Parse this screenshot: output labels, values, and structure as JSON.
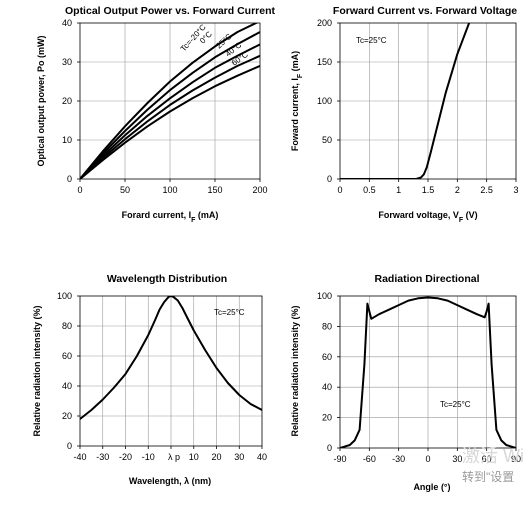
{
  "chart_data": [
    {
      "type": "line",
      "title": "Optical Output Power vs. Forward Current",
      "xlabel": "Forard current, I",
      "xlabel_sub": "F",
      "xlabel_unit": " (mA)",
      "ylabel": "Optical output power, Po (mW)",
      "xlim": [
        0,
        200
      ],
      "ylim": [
        0,
        40
      ],
      "xticks": [
        "0",
        "50",
        "100",
        "150",
        "200"
      ],
      "yticks": [
        "0",
        "10",
        "20",
        "30",
        "40"
      ],
      "grid": true,
      "series": [
        {
          "name": "Tc=-20°C",
          "x": [
            0,
            25,
            50,
            75,
            100,
            125,
            150,
            175,
            200
          ],
          "y": [
            0,
            7.0,
            13.5,
            19.5,
            25.0,
            29.8,
            34.0,
            37.7,
            40.5
          ]
        },
        {
          "name": "0°C",
          "x": [
            0,
            25,
            50,
            75,
            100,
            125,
            150,
            175,
            200
          ],
          "y": [
            0,
            6.4,
            12.3,
            17.8,
            22.8,
            27.2,
            31.2,
            34.6,
            37.7
          ]
        },
        {
          "name": "25°C",
          "x": [
            0,
            25,
            50,
            75,
            100,
            125,
            150,
            175,
            200
          ],
          "y": [
            0,
            5.8,
            11.2,
            16.2,
            20.7,
            24.8,
            28.5,
            31.6,
            34.5
          ]
        },
        {
          "name": "40°C",
          "x": [
            0,
            25,
            50,
            75,
            100,
            125,
            150,
            175,
            200
          ],
          "y": [
            0,
            5.3,
            10.2,
            14.8,
            19.0,
            22.7,
            26.0,
            29.0,
            31.6
          ]
        },
        {
          "name": "60°C",
          "x": [
            0,
            25,
            50,
            75,
            100,
            125,
            150,
            175,
            200
          ],
          "y": [
            0,
            4.8,
            9.3,
            13.5,
            17.3,
            20.7,
            23.8,
            26.5,
            29.0
          ]
        }
      ]
    },
    {
      "type": "line",
      "title": "Forward Current vs. Forward Voltage",
      "xlabel": "Forward voltage, V",
      "xlabel_sub": "F",
      "xlabel_unit": " (V)",
      "ylabel": "Foward current, I",
      "ylabel_sub": "F",
      "ylabel_unit": " (mA)",
      "annotation": "Tc=25°C",
      "xlim": [
        0,
        3
      ],
      "ylim": [
        0,
        200
      ],
      "xticks": [
        "0",
        "0.5",
        "1",
        "1.5",
        "2",
        "2.5",
        "3"
      ],
      "yticks": [
        "0",
        "50",
        "100",
        "150",
        "200"
      ],
      "grid": true,
      "series": [
        {
          "x": [
            0,
            1.3,
            1.38,
            1.43,
            1.48,
            1.55,
            1.65,
            1.8,
            2.0,
            2.2,
            2.3
          ],
          "y": [
            0,
            0,
            2,
            6,
            15,
            35,
            65,
            110,
            160,
            200,
            220
          ]
        }
      ]
    },
    {
      "type": "line",
      "title": "Wavelength Distribution",
      "xlabel": "Wavelength, λ (nm)",
      "ylabel": "Relative radiation intensity (%)",
      "annotation": "Tc=25°C",
      "peak_label": "λ p",
      "xlim": [
        -40,
        40
      ],
      "ylim": [
        0,
        100
      ],
      "xticks": [
        "-40",
        "-30",
        "-20",
        "-10",
        "0",
        "10",
        "20",
        "30",
        "40"
      ],
      "yticks": [
        "0",
        "20",
        "40",
        "60",
        "80",
        "100"
      ],
      "grid": true,
      "series": [
        {
          "x": [
            -40,
            -35,
            -30,
            -25,
            -20,
            -15,
            -10,
            -7,
            -5,
            -3,
            -1,
            0,
            1,
            3,
            5,
            7,
            10,
            15,
            20,
            25,
            30,
            35,
            40
          ],
          "y": [
            18,
            24,
            31,
            39,
            48,
            60,
            74,
            84,
            91,
            96,
            99.5,
            100,
            99.5,
            97,
            92,
            86,
            77,
            64,
            52,
            42,
            34,
            28,
            24
          ]
        }
      ]
    },
    {
      "type": "line",
      "title": "Radiation Directional",
      "xlabel": "Angle (°)",
      "ylabel": "Relative radiation intensity (%)",
      "annotation": "Tc=25°C",
      "xlim": [
        -90,
        90
      ],
      "ylim": [
        0,
        100
      ],
      "xticks": [
        "-90",
        "-60",
        "-30",
        "0",
        "30",
        "60",
        "90"
      ],
      "yticks": [
        "0",
        "20",
        "40",
        "60",
        "80",
        "100"
      ],
      "grid": true,
      "series": [
        {
          "x": [
            -90,
            -80,
            -75,
            -70,
            -65,
            -62,
            -60,
            -58,
            -50,
            -40,
            -30,
            -20,
            -10,
            0,
            10,
            20,
            30,
            40,
            50,
            58,
            60,
            62,
            65,
            70,
            75,
            80,
            90
          ],
          "y": [
            0,
            2,
            5,
            12,
            55,
            95,
            90,
            85,
            88,
            91,
            94,
            97,
            98.5,
            99,
            98.5,
            97,
            94,
            91,
            88,
            86,
            90,
            95,
            55,
            12,
            5,
            2,
            0
          ]
        }
      ]
    }
  ],
  "watermark": {
    "line1": "激活 Wi",
    "line2": "转到\"设置"
  }
}
